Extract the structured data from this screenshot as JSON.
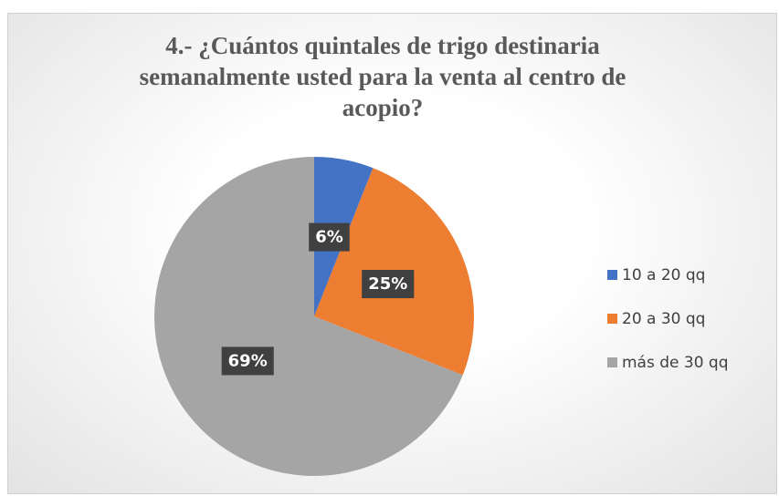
{
  "chart_data": {
    "type": "pie",
    "title": "4.- ¿Cuántos quintales de trigo destinaria semanalmente usted para la venta al centro de acopio?",
    "categories": [
      "10 a 20 qq",
      "20 a 30 qq",
      "más de 30 qq"
    ],
    "values": [
      6,
      25,
      69
    ],
    "value_labels": [
      "6%",
      "25%",
      "69%"
    ],
    "colors": [
      "#4472c4",
      "#ed7d31",
      "#a5a5a5"
    ],
    "legend": "right"
  }
}
